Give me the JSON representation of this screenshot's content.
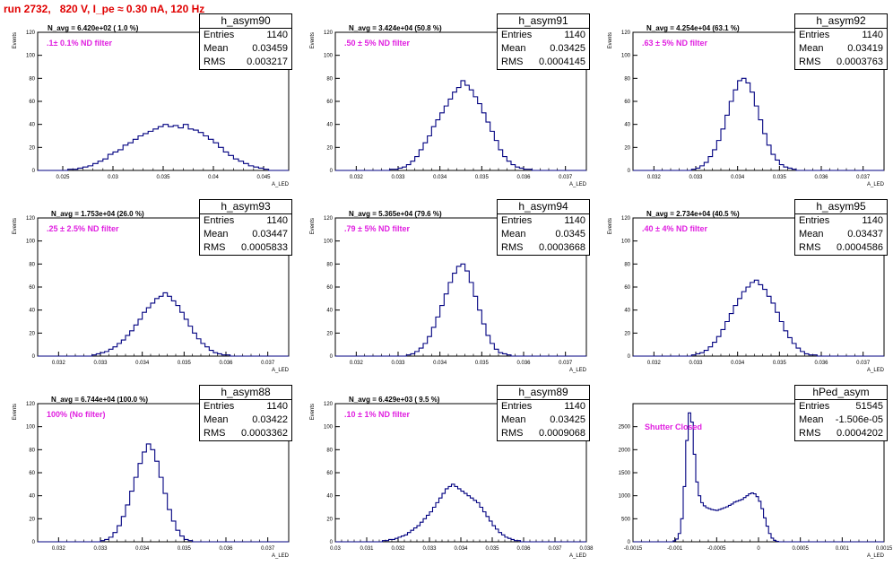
{
  "run_title": "run 2732,   820 V, I_pe ≈ 0.30 nA, 120 Hz",
  "colors": {
    "title": "#e00000",
    "filter_label": "#e020e0",
    "histogram_line": "#000080"
  },
  "chart_data": [
    {
      "type": "histogram",
      "title": "h_asym90",
      "n_avg": "N_avg = 6.420e+02 ( 1.0 %)",
      "filter_label": ".1± 0.1% ND filter",
      "stats": {
        "Entries": "1140",
        "Mean": "0.03459",
        "RMS": "0.003217"
      },
      "ylabel": "Events",
      "xlabel": "A_LED",
      "xlim": [
        0.0225,
        0.0475
      ],
      "ylim": [
        0,
        120
      ],
      "x_ticks": [
        "0.025",
        "0.03",
        "0.035",
        "0.04",
        "0.045"
      ],
      "y_ticks": [
        "0",
        "20",
        "40",
        "60",
        "80",
        "100",
        "120"
      ],
      "bin_start": 0.0225,
      "bin_width": 0.0005,
      "values": [
        0,
        0,
        0,
        0,
        0,
        0,
        1,
        1,
        2,
        3,
        4,
        6,
        8,
        10,
        14,
        16,
        18,
        22,
        24,
        27,
        30,
        32,
        34,
        36,
        38,
        40,
        38,
        39,
        37,
        40,
        36,
        35,
        33,
        30,
        27,
        24,
        20,
        16,
        13,
        10,
        8,
        6,
        4,
        3,
        2,
        1,
        0,
        0,
        0,
        0
      ]
    },
    {
      "type": "histogram",
      "title": "h_asym91",
      "n_avg": "N_avg = 3.424e+04 (50.8 %)",
      "filter_label": ".50 ± 5% ND filter",
      "stats": {
        "Entries": "1140",
        "Mean": "0.03425",
        "RMS": "0.0004145"
      },
      "ylabel": "Events",
      "xlabel": "A_LED",
      "xlim": [
        0.0315,
        0.0375
      ],
      "ylim": [
        0,
        120
      ],
      "x_ticks": [
        "0.032",
        "0.033",
        "0.034",
        "0.035",
        "0.036",
        "0.037"
      ],
      "y_ticks": [
        "0",
        "20",
        "40",
        "60",
        "80",
        "100",
        "120"
      ],
      "bin_start": 0.0315,
      "bin_width": 0.0001,
      "values": [
        0,
        0,
        0,
        0,
        0,
        0,
        0,
        0,
        0,
        0,
        0,
        0,
        0,
        1,
        1,
        2,
        3,
        5,
        8,
        12,
        18,
        24,
        30,
        38,
        44,
        50,
        56,
        62,
        68,
        72,
        78,
        74,
        70,
        64,
        58,
        50,
        42,
        34,
        26,
        18,
        12,
        8,
        5,
        3,
        2,
        1,
        1,
        0,
        0,
        0,
        0,
        0,
        0,
        0,
        0,
        0,
        0,
        0,
        0,
        0
      ]
    },
    {
      "type": "histogram",
      "title": "h_asym92",
      "n_avg": "N_avg = 4.254e+04 (63.1 %)",
      "filter_label": ".63 ± 5% ND filter",
      "stats": {
        "Entries": "1140",
        "Mean": "0.03419",
        "RMS": "0.0003763"
      },
      "ylabel": "Events",
      "xlabel": "A_LED",
      "xlim": [
        0.0315,
        0.0375
      ],
      "ylim": [
        0,
        120
      ],
      "x_ticks": [
        "0.032",
        "0.033",
        "0.034",
        "0.035",
        "0.036",
        "0.037"
      ],
      "y_ticks": [
        "0",
        "20",
        "40",
        "60",
        "80",
        "100",
        "120"
      ],
      "bin_start": 0.0315,
      "bin_width": 0.0001,
      "values": [
        0,
        0,
        0,
        0,
        0,
        0,
        0,
        0,
        0,
        0,
        0,
        0,
        0,
        0,
        1,
        2,
        4,
        7,
        12,
        18,
        26,
        36,
        48,
        60,
        70,
        78,
        80,
        76,
        68,
        56,
        44,
        32,
        22,
        14,
        9,
        5,
        3,
        2,
        1,
        0,
        0,
        0,
        0,
        0,
        0,
        0,
        0,
        0,
        0,
        0,
        0,
        0,
        0,
        0,
        0,
        0,
        0,
        0,
        0,
        0
      ]
    },
    {
      "type": "histogram",
      "title": "h_asym93",
      "n_avg": "N_avg = 1.753e+04 (26.0 %)",
      "filter_label": ".25 ± 2.5% ND filter",
      "stats": {
        "Entries": "1140",
        "Mean": "0.03447",
        "RMS": "0.0005833"
      },
      "ylabel": "Events",
      "xlabel": "A_LED",
      "xlim": [
        0.0315,
        0.0375
      ],
      "ylim": [
        0,
        120
      ],
      "x_ticks": [
        "0.032",
        "0.033",
        "0.034",
        "0.035",
        "0.036",
        "0.037"
      ],
      "y_ticks": [
        "0",
        "20",
        "40",
        "60",
        "80",
        "100",
        "120"
      ],
      "bin_start": 0.0315,
      "bin_width": 0.0001,
      "values": [
        0,
        0,
        0,
        0,
        0,
        0,
        0,
        0,
        0,
        0,
        0,
        0,
        0,
        1,
        2,
        3,
        4,
        6,
        8,
        11,
        14,
        18,
        22,
        27,
        32,
        38,
        42,
        46,
        50,
        52,
        55,
        52,
        48,
        44,
        38,
        32,
        26,
        20,
        15,
        11,
        8,
        5,
        3,
        2,
        1,
        1,
        0,
        0,
        0,
        0,
        0,
        0,
        0,
        0,
        0,
        0,
        0,
        0,
        0,
        0
      ]
    },
    {
      "type": "histogram",
      "title": "h_asym94",
      "n_avg": "N_avg = 5.365e+04 (79.6 %)",
      "filter_label": ".79 ± 5% ND filter",
      "stats": {
        "Entries": "1140",
        "Mean": "0.0345",
        "RMS": "0.0003668"
      },
      "ylabel": "Events",
      "xlabel": "A_LED",
      "xlim": [
        0.0315,
        0.0375
      ],
      "ylim": [
        0,
        120
      ],
      "x_ticks": [
        "0.032",
        "0.033",
        "0.034",
        "0.035",
        "0.036",
        "0.037"
      ],
      "y_ticks": [
        "0",
        "20",
        "40",
        "60",
        "80",
        "100",
        "120"
      ],
      "bin_start": 0.0315,
      "bin_width": 0.0001,
      "values": [
        0,
        0,
        0,
        0,
        0,
        0,
        0,
        0,
        0,
        0,
        0,
        0,
        0,
        0,
        0,
        0,
        0,
        1,
        2,
        4,
        7,
        11,
        17,
        25,
        34,
        44,
        54,
        64,
        72,
        78,
        80,
        74,
        64,
        52,
        40,
        28,
        18,
        11,
        6,
        3,
        2,
        1,
        0,
        0,
        0,
        0,
        0,
        0,
        0,
        0,
        0,
        0,
        0,
        0,
        0,
        0,
        0,
        0,
        0,
        0
      ]
    },
    {
      "type": "histogram",
      "title": "h_asym95",
      "n_avg": "N_avg = 2.734e+04 (40.5 %)",
      "filter_label": ".40 ± 4% ND filter",
      "stats": {
        "Entries": "1140",
        "Mean": "0.03437",
        "RMS": "0.0004586"
      },
      "ylabel": "Events",
      "xlabel": "A_LED",
      "xlim": [
        0.0315,
        0.0375
      ],
      "ylim": [
        0,
        120
      ],
      "x_ticks": [
        "0.032",
        "0.033",
        "0.034",
        "0.035",
        "0.036",
        "0.037"
      ],
      "y_ticks": [
        "0",
        "20",
        "40",
        "60",
        "80",
        "100",
        "120"
      ],
      "bin_start": 0.0315,
      "bin_width": 0.0001,
      "values": [
        0,
        0,
        0,
        0,
        0,
        0,
        0,
        0,
        0,
        0,
        0,
        0,
        0,
        0,
        1,
        2,
        3,
        5,
        8,
        12,
        17,
        23,
        30,
        37,
        44,
        50,
        56,
        60,
        64,
        66,
        62,
        58,
        52,
        46,
        38,
        30,
        22,
        16,
        11,
        7,
        4,
        2,
        1,
        1,
        0,
        0,
        0,
        0,
        0,
        0,
        0,
        0,
        0,
        0,
        0,
        0,
        0,
        0,
        0,
        0
      ]
    },
    {
      "type": "histogram",
      "title": "h_asym88",
      "n_avg": "N_avg = 6.744e+04 (100.0 %)",
      "filter_label": "100% (No filter)",
      "stats": {
        "Entries": "1140",
        "Mean": "0.03422",
        "RMS": "0.0003362"
      },
      "ylabel": "Events",
      "xlabel": "A_LED",
      "xlim": [
        0.0315,
        0.0375
      ],
      "ylim": [
        0,
        120
      ],
      "x_ticks": [
        "0.032",
        "0.033",
        "0.034",
        "0.035",
        "0.036",
        "0.037"
      ],
      "y_ticks": [
        "0",
        "20",
        "40",
        "60",
        "80",
        "100",
        "120"
      ],
      "bin_start": 0.0315,
      "bin_width": 0.0001,
      "values": [
        0,
        0,
        0,
        0,
        0,
        0,
        0,
        0,
        0,
        0,
        0,
        0,
        0,
        0,
        0,
        1,
        2,
        4,
        8,
        14,
        22,
        32,
        44,
        56,
        68,
        78,
        85,
        80,
        70,
        56,
        42,
        28,
        18,
        10,
        5,
        2,
        1,
        0,
        0,
        0,
        0,
        0,
        0,
        0,
        0,
        0,
        0,
        0,
        0,
        0,
        0,
        0,
        0,
        0,
        0,
        0,
        0,
        0,
        0,
        0
      ]
    },
    {
      "type": "histogram",
      "title": "h_asym89",
      "n_avg": "N_avg = 6.429e+03 ( 9.5 %)",
      "filter_label": ".10 ± 1% ND filter",
      "stats": {
        "Entries": "1140",
        "Mean": "0.03425",
        "RMS": "0.0009068"
      },
      "ylabel": "Events",
      "xlabel": "A_LED",
      "xlim": [
        0.03,
        0.038
      ],
      "ylim": [
        0,
        120
      ],
      "x_ticks": [
        "0.03",
        "0.031",
        "0.032",
        "0.033",
        "0.034",
        "0.035",
        "0.036",
        "0.037",
        "0.038"
      ],
      "y_ticks": [
        "0",
        "20",
        "40",
        "60",
        "80",
        "100",
        "120"
      ],
      "bin_start": 0.03,
      "bin_width": 0.0001,
      "values": [
        0,
        0,
        0,
        0,
        0,
        0,
        0,
        0,
        0,
        0,
        0,
        0,
        0,
        0,
        0,
        1,
        1,
        2,
        2,
        3,
        4,
        5,
        6,
        8,
        10,
        12,
        14,
        17,
        20,
        23,
        26,
        30,
        34,
        38,
        42,
        46,
        48,
        50,
        48,
        46,
        44,
        42,
        40,
        38,
        36,
        34,
        30,
        26,
        22,
        18,
        14,
        11,
        8,
        6,
        4,
        3,
        2,
        1,
        1,
        0,
        0,
        0,
        0,
        0,
        0,
        0,
        0,
        0,
        0,
        0,
        0,
        0,
        0,
        0,
        0,
        0,
        0,
        0,
        0,
        0
      ]
    },
    {
      "type": "histogram",
      "title": "hPed_asym",
      "n_avg": "",
      "filter_label": "Shutter Closed",
      "stats": {
        "Entries": "51545",
        "Mean": "-1.506e-05",
        "RMS": "0.0004202"
      },
      "ylabel": "",
      "xlabel": "A_LED",
      "xlim": [
        -0.0015,
        0.0015
      ],
      "ylim": [
        0,
        3000
      ],
      "x_ticks": [
        "-0.0015",
        "-0.001",
        "-0.0005",
        "0",
        "0.0005",
        "0.001",
        "0.0015"
      ],
      "y_ticks": [
        "0",
        "500",
        "1000",
        "1500",
        "2000",
        "2500"
      ],
      "bin_start": -0.0015,
      "bin_width": 3e-05,
      "values": [
        0,
        0,
        0,
        0,
        0,
        0,
        0,
        0,
        0,
        0,
        0,
        0,
        0,
        0,
        0,
        0,
        20,
        60,
        180,
        500,
        1200,
        2200,
        2800,
        2600,
        1900,
        1300,
        1000,
        850,
        780,
        740,
        720,
        700,
        690,
        680,
        700,
        720,
        740,
        760,
        790,
        820,
        860,
        880,
        900,
        920,
        960,
        1000,
        1040,
        1060,
        1040,
        980,
        880,
        720,
        520,
        340,
        180,
        80,
        30,
        10,
        0,
        0,
        0,
        0,
        0,
        0,
        0,
        0,
        0,
        0,
        0,
        0,
        0,
        0,
        0,
        0,
        0,
        0,
        0,
        0,
        0,
        0,
        0,
        0,
        0,
        0,
        0,
        0,
        0,
        0,
        0,
        0,
        0,
        0,
        0,
        0,
        0,
        0,
        0,
        0,
        0,
        0
      ]
    }
  ]
}
